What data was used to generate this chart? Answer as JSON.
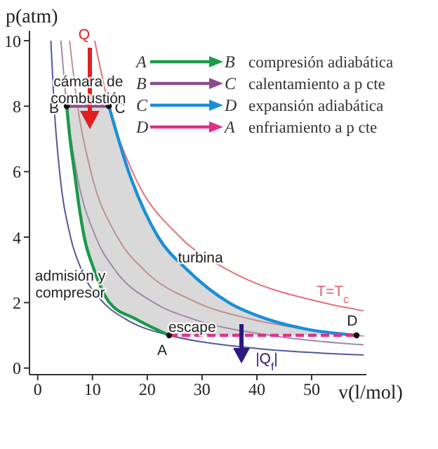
{
  "chart_data": {
    "type": "line",
    "xlabel": "v(l/mol)",
    "ylabel": "p(atm)",
    "xlim": [
      -1.5,
      60
    ],
    "ylim": [
      -0.2,
      10.3
    ],
    "xticks": [
      0,
      10,
      20,
      30,
      40,
      50
    ],
    "yticks": [
      0,
      2,
      4,
      6,
      8,
      10
    ],
    "legend": "top right",
    "marker": "none",
    "series": [
      {
        "color": "#55579a",
        "x": [
          2.4,
          3,
          4,
          6,
          8,
          12,
          16,
          24,
          30,
          40,
          59.5
        ],
        "values": [
          10,
          8,
          6,
          4,
          3,
          2,
          1.5,
          1,
          0.8,
          0.6,
          0.4
        ]
      },
      {
        "color": "#a08aa8",
        "x": [
          4.24,
          5.3,
          7.07,
          10.6,
          14.1,
          21.2,
          28.3,
          42.4,
          59.5
        ],
        "values": [
          10,
          8,
          6,
          4,
          3,
          2,
          1.5,
          1,
          0.71
        ]
      },
      {
        "color": "#c09090",
        "x": [
          5.82,
          7.28,
          9.7,
          14.55,
          19.4,
          29.1,
          38.8,
          48.5,
          59.5
        ],
        "values": [
          10,
          8,
          6,
          4,
          3,
          2,
          1.5,
          1.2,
          0.98
        ]
      },
      {
        "color": "#e8707a",
        "x": [
          10.4,
          13,
          17.3,
          26,
          34.7,
          52,
          59.5
        ],
        "values": [
          10,
          8,
          6,
          4,
          3,
          2,
          1.75
        ]
      },
      {
        "name": "compresión adiabática",
        "color": "#1a9a4a",
        "x": [
          5.3,
          5.9,
          6.7,
          7.5,
          8.5,
          10.3,
          13.1,
          17.9,
          24
        ],
        "values": [
          8,
          7,
          6,
          5,
          4,
          3,
          2,
          1.5,
          1
        ]
      },
      {
        "name": "calentamiento a p cte",
        "color": "#8a4e8a",
        "x": [
          5.3,
          13
        ],
        "values": [
          8,
          8
        ]
      },
      {
        "name": "expansión adiabática",
        "color": "#1a8fd8",
        "x": [
          13,
          16.6,
          22,
          27.3,
          34.9,
          41.8,
          48.7,
          58.2
        ],
        "values": [
          8,
          6,
          4,
          3,
          2,
          1.5,
          1.2,
          1
        ]
      },
      {
        "name": "enfriamiento a p cte",
        "color": "#e0308a",
        "line_style": "dashed",
        "x": [
          24,
          58.2
        ],
        "values": [
          1,
          1
        ]
      },
      {
        "type": "scatter",
        "marker": "circle",
        "color": "#111111",
        "x": [
          24,
          5.3,
          13,
          58.2
        ],
        "values": [
          1,
          8,
          8,
          1
        ]
      }
    ],
    "annotations": [
      {
        "text": "A",
        "x": 24,
        "y": 1
      },
      {
        "text": "B",
        "x": 5.3,
        "y": 8
      },
      {
        "text": "C",
        "x": 13,
        "y": 8
      },
      {
        "text": "D",
        "x": 58.2,
        "y": 1
      },
      "Q",
      {
        "text": "cámara de combustión",
        "x": 9.5,
        "y": 8
      },
      {
        "text": "turbina",
        "x": 29.7,
        "y": 3.4
      },
      "admisión y compresor",
      {
        "text": "escape",
        "x": 28.2,
        "y": 1.28
      },
      "T=T$_{c}$",
      "|Q$_{f}$|"
    ]
  }
}
